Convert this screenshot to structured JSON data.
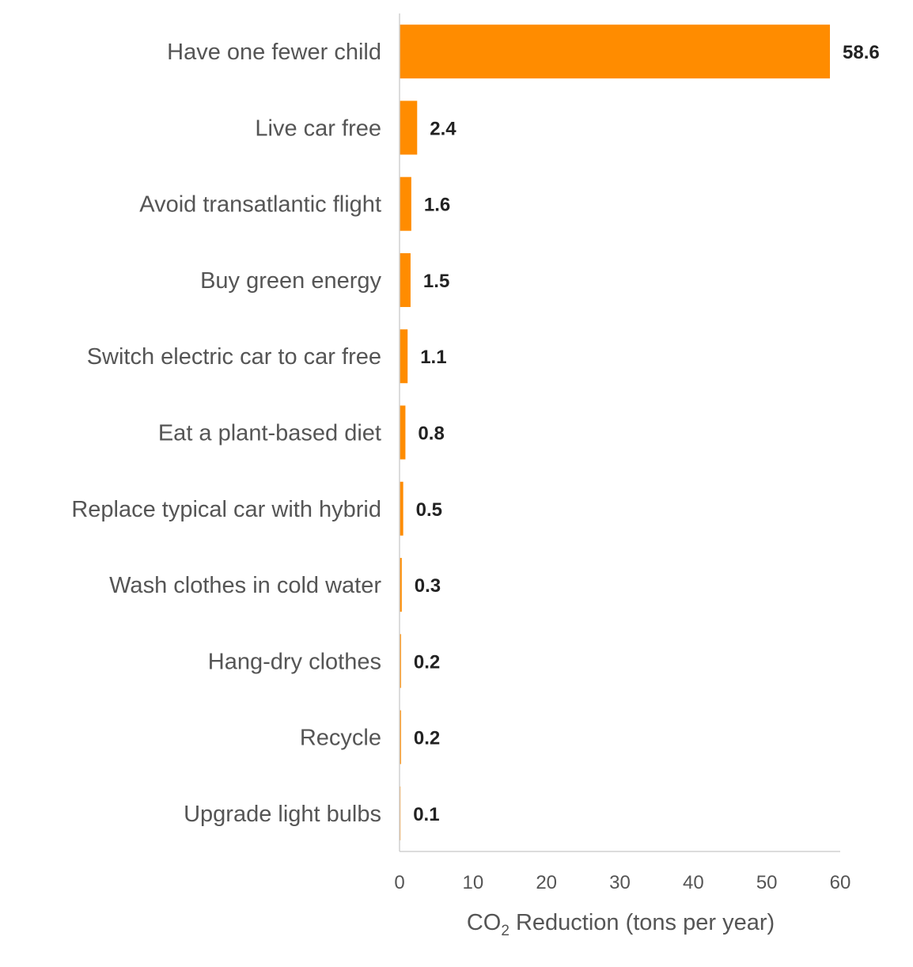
{
  "chart_data": {
    "type": "bar",
    "orientation": "horizontal",
    "categories": [
      "Have one fewer child",
      "Live car free",
      "Avoid transatlantic flight",
      "Buy green energy",
      "Switch electric car to car free",
      "Eat a plant-based diet",
      "Replace typical car with hybrid",
      "Wash clothes in cold water",
      "Hang-dry clothes",
      "Recycle",
      "Upgrade light bulbs"
    ],
    "values": [
      58.6,
      2.4,
      1.6,
      1.5,
      1.1,
      0.8,
      0.5,
      0.3,
      0.2,
      0.2,
      0.1
    ],
    "value_labels": [
      "58.6",
      "2.4",
      "1.6",
      "1.5",
      "1.1",
      "0.8",
      "0.5",
      "0.3",
      "0.2",
      "0.2",
      "0.1"
    ],
    "xlim": [
      0,
      60
    ],
    "xticks": [
      "0",
      "10",
      "20",
      "30",
      "40",
      "50",
      "60"
    ],
    "xlabel": {
      "prefix": "CO",
      "subscript": "2",
      "suffix": " Reduction (tons per year)"
    },
    "bar_color": "#FF8C00",
    "grid": false
  }
}
